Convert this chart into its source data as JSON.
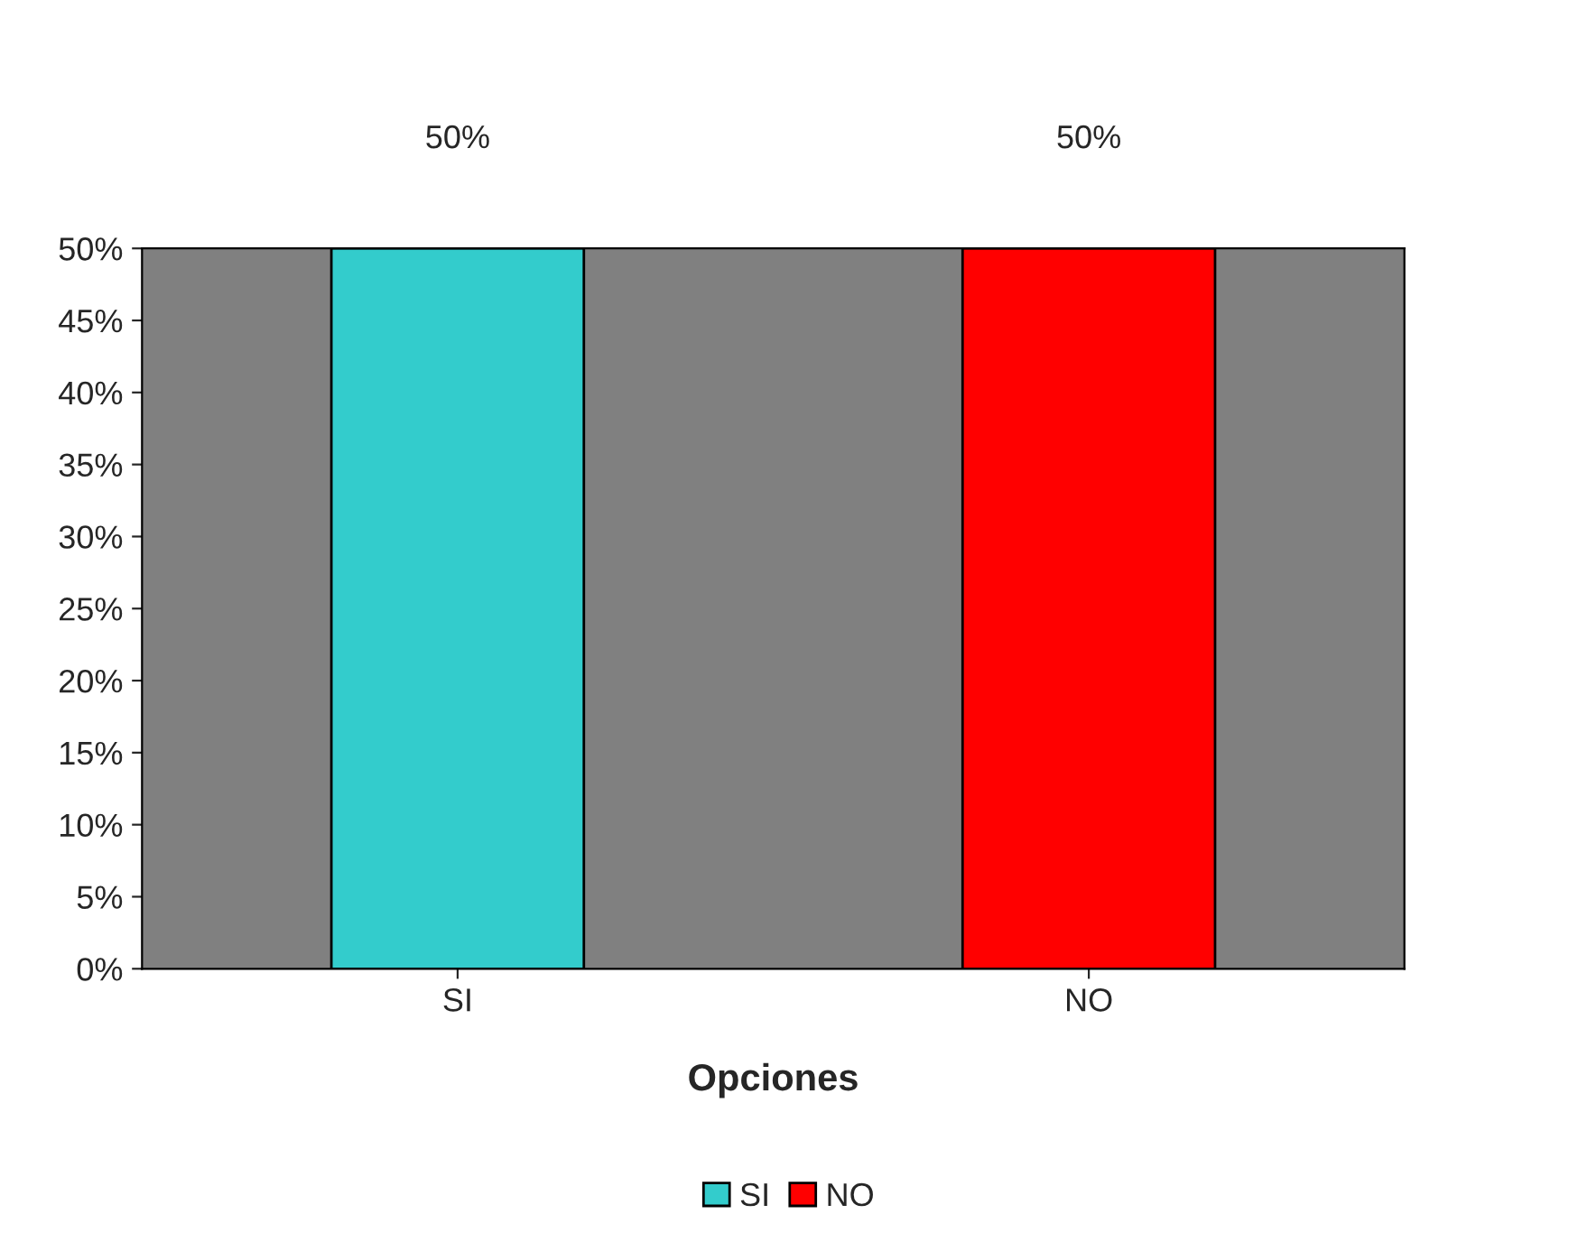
{
  "chart_data": {
    "type": "bar",
    "xlabel": "Opciones",
    "categories": [
      "SI",
      "NO"
    ],
    "series": [
      {
        "name": "SI",
        "color": "#33cccc",
        "values": [
          50,
          null
        ],
        "value_labels": [
          "50%",
          null
        ]
      },
      {
        "name": "NO",
        "color": "#ff0000",
        "values": [
          null,
          50
        ],
        "value_labels": [
          null,
          "50%"
        ]
      }
    ],
    "ylim": [
      0,
      50
    ],
    "yticks": [
      {
        "value": 0,
        "label": "0%"
      },
      {
        "value": 5,
        "label": "5%"
      },
      {
        "value": 10,
        "label": "10%"
      },
      {
        "value": 15,
        "label": "15%"
      },
      {
        "value": 20,
        "label": "20%"
      },
      {
        "value": 25,
        "label": "25%"
      },
      {
        "value": 30,
        "label": "30%"
      },
      {
        "value": 35,
        "label": "35%"
      },
      {
        "value": 40,
        "label": "40%"
      },
      {
        "value": 45,
        "label": "45%"
      },
      {
        "value": 50,
        "label": "50%"
      }
    ],
    "grid": false,
    "legend": "bottom"
  }
}
